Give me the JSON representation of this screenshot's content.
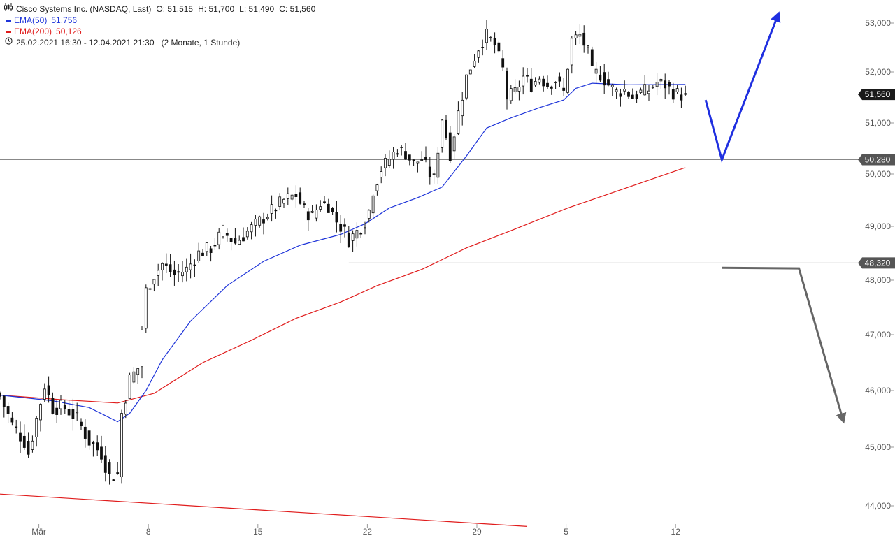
{
  "header": {
    "instrument": "Cisco Systems Inc. (NASDAQ, Last)",
    "ohlc": [
      {
        "label": "O:",
        "value": "51,515"
      },
      {
        "label": "H:",
        "value": "51,700"
      },
      {
        "label": "L:",
        "value": "51,490"
      },
      {
        "label": "C:",
        "value": "51,560"
      }
    ],
    "ema50_label": "EMA(50)",
    "ema50_value": "51,756",
    "ema200_label": "EMA(200)",
    "ema200_value": "50,126",
    "range": "25.02.2021 16:30 - 12.04.2021 21:30",
    "period": "(2 Monate, 1 Stunde)"
  },
  "colors": {
    "ema50": "#1f35d9",
    "ema200": "#e01c1c",
    "candle": "#111111",
    "level_line": "#888888",
    "badge_dark": "#1a1a1a",
    "badge_grey": "#555555",
    "bull_arrow": "#1f2fe0",
    "bear_arrow": "#666666"
  },
  "chart_data": {
    "type": "candlestick",
    "y_axis": {
      "ticks": [
        53000,
        52000,
        51000,
        50000,
        49000,
        48000,
        47000,
        46000,
        45000,
        44000
      ],
      "tick_labels": [
        "53,000",
        "52,000",
        "51,000",
        "50,000",
        "49,000",
        "48,000",
        "47,000",
        "46,000",
        "45,000",
        "44,000"
      ],
      "side": "right"
    },
    "x_axis": {
      "tick_labels": [
        "Mär",
        "8",
        "15",
        "22",
        "29",
        "5",
        "12"
      ],
      "tick_bar_index": [
        7,
        34,
        61,
        88,
        115,
        137,
        164
      ]
    },
    "price_badges": [
      {
        "label": "51,560",
        "value": 51.56,
        "style": "dark"
      },
      {
        "label": "50,280",
        "value": 50.28,
        "style": "grey"
      },
      {
        "label": "48,320",
        "value": 48.32,
        "style": "grey"
      }
    ],
    "horizontal_levels": [
      {
        "value": 50.28,
        "from_bar": 0
      },
      {
        "value": 48.32,
        "from_bar": 86
      }
    ],
    "close_anchors": [
      [
        0,
        45.9
      ],
      [
        3,
        45.4
      ],
      [
        6,
        45.1
      ],
      [
        7,
        44.9
      ],
      [
        9,
        45.5
      ],
      [
        11,
        46.1
      ],
      [
        13,
        45.7
      ],
      [
        16,
        45.7
      ],
      [
        19,
        45.5
      ],
      [
        22,
        45.1
      ],
      [
        25,
        44.9
      ],
      [
        27,
        44.5
      ],
      [
        29,
        44.55
      ],
      [
        30,
        45.6
      ],
      [
        32,
        46.2
      ],
      [
        34,
        46.4
      ],
      [
        35,
        47.1
      ],
      [
        36,
        47.8
      ],
      [
        38,
        48.1
      ],
      [
        40,
        48.3
      ],
      [
        43,
        48.1
      ],
      [
        46,
        48.2
      ],
      [
        49,
        48.5
      ],
      [
        52,
        48.6
      ],
      [
        55,
        48.9
      ],
      [
        58,
        48.7
      ],
      [
        61,
        48.9
      ],
      [
        64,
        49.1
      ],
      [
        67,
        49.3
      ],
      [
        70,
        49.5
      ],
      [
        73,
        49.6
      ],
      [
        75,
        49.3
      ],
      [
        77,
        49.2
      ],
      [
        79,
        49.45
      ],
      [
        81,
        49.4
      ],
      [
        83,
        49.1
      ],
      [
        85,
        48.9
      ],
      [
        86,
        48.75
      ],
      [
        88,
        48.9
      ],
      [
        90,
        49.1
      ],
      [
        91,
        49.3
      ],
      [
        92,
        49.7
      ],
      [
        94,
        50.1
      ],
      [
        96,
        50.3
      ],
      [
        98,
        50.5
      ],
      [
        100,
        50.4
      ],
      [
        102,
        50.2
      ],
      [
        104,
        50.3
      ],
      [
        106,
        50.0
      ],
      [
        107,
        49.9
      ],
      [
        109,
        51.1
      ],
      [
        111,
        50.4
      ],
      [
        113,
        51.2
      ],
      [
        115,
        51.9
      ],
      [
        116,
        52.1
      ],
      [
        118,
        52.5
      ],
      [
        120,
        52.75
      ],
      [
        122,
        52.55
      ],
      [
        124,
        52.05
      ],
      [
        125,
        51.5
      ],
      [
        127,
        51.6
      ],
      [
        129,
        51.9
      ],
      [
        131,
        51.75
      ],
      [
        133,
        51.9
      ],
      [
        135,
        51.75
      ],
      [
        137,
        51.85
      ],
      [
        139,
        51.6
      ],
      [
        141,
        52.65
      ],
      [
        143,
        52.75
      ],
      [
        145,
        52.4
      ],
      [
        146,
        52.0
      ],
      [
        148,
        51.95
      ],
      [
        150,
        51.75
      ],
      [
        152,
        51.6
      ],
      [
        154,
        51.65
      ],
      [
        156,
        51.5
      ],
      [
        158,
        51.6
      ],
      [
        160,
        51.65
      ],
      [
        162,
        51.8
      ],
      [
        164,
        51.75
      ],
      [
        166,
        51.6
      ],
      [
        168,
        51.55
      ],
      [
        169,
        51.56
      ]
    ],
    "ema50": [
      [
        0,
        45.92
      ],
      [
        13,
        45.82
      ],
      [
        22,
        45.7
      ],
      [
        29,
        45.45
      ],
      [
        32,
        45.6
      ],
      [
        36,
        46.0
      ],
      [
        40,
        46.55
      ],
      [
        47,
        47.25
      ],
      [
        56,
        47.9
      ],
      [
        65,
        48.35
      ],
      [
        74,
        48.65
      ],
      [
        84,
        48.85
      ],
      [
        90,
        49.05
      ],
      [
        96,
        49.35
      ],
      [
        103,
        49.55
      ],
      [
        109,
        49.75
      ],
      [
        115,
        50.35
      ],
      [
        120,
        50.9
      ],
      [
        126,
        51.1
      ],
      [
        133,
        51.3
      ],
      [
        139,
        51.45
      ],
      [
        142,
        51.68
      ],
      [
        146,
        51.78
      ],
      [
        155,
        51.75
      ],
      [
        169,
        51.756
      ]
    ],
    "ema200": [
      [
        0,
        45.92
      ],
      [
        15,
        45.84
      ],
      [
        29,
        45.78
      ],
      [
        38,
        45.95
      ],
      [
        50,
        46.5
      ],
      [
        62,
        46.9
      ],
      [
        73,
        47.3
      ],
      [
        84,
        47.6
      ],
      [
        93,
        47.9
      ],
      [
        104,
        48.2
      ],
      [
        115,
        48.6
      ],
      [
        127,
        48.95
      ],
      [
        140,
        49.35
      ],
      [
        155,
        49.75
      ],
      [
        169,
        50.126
      ]
    ],
    "red_trendline": {
      "from": [
        0,
        44.2
      ],
      "to": [
        130,
        43.65
      ]
    },
    "bullish_projection": [
      [
        174,
        51.45
      ],
      [
        178,
        50.28
      ],
      [
        192,
        53.2
      ]
    ],
    "bearish_projection": [
      [
        178,
        48.23
      ],
      [
        197,
        48.22
      ],
      [
        208,
        45.45
      ]
    ]
  }
}
